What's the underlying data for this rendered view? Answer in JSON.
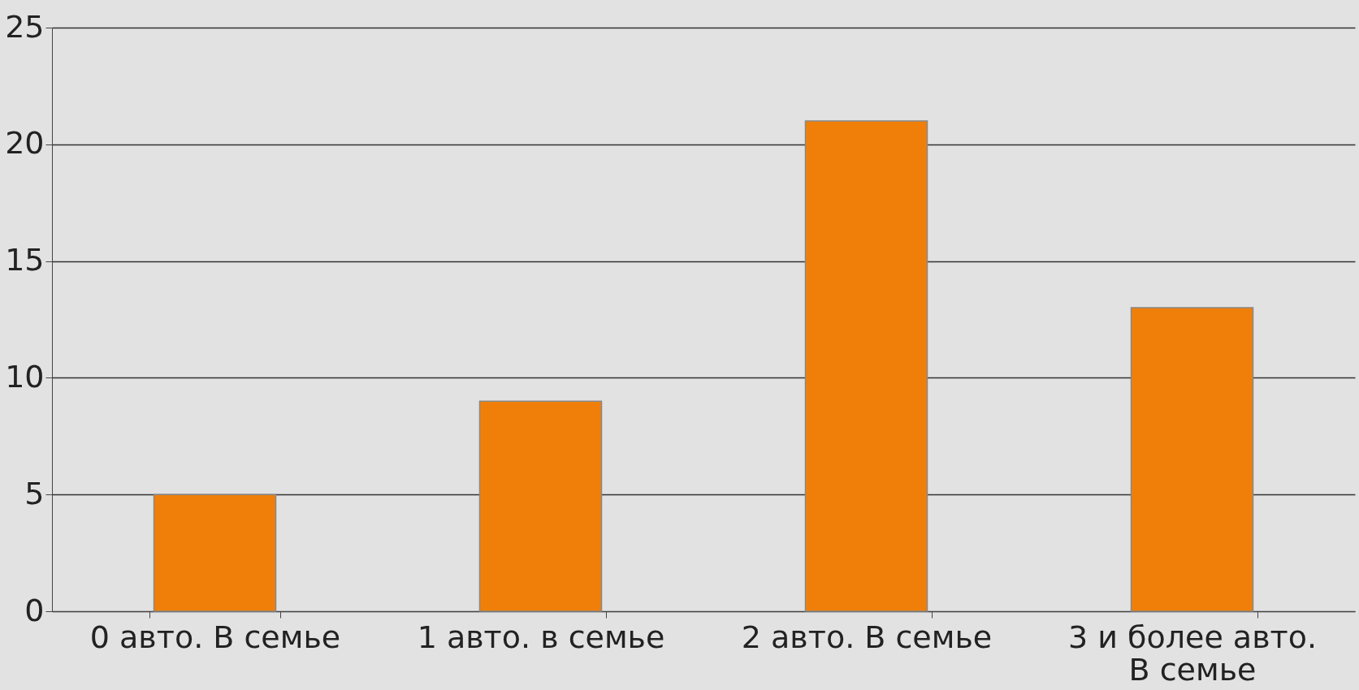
{
  "chart_data": {
    "type": "bar",
    "categories": [
      "0 авто. В семье",
      "1 авто. в семье",
      "2 авто. В семье",
      "3 и более авто. В семье"
    ],
    "values": [
      5,
      9,
      21,
      13
    ],
    "color": "#f07f09",
    "ylim": [
      0,
      25
    ],
    "yticks": [
      0,
      5,
      10,
      15,
      20,
      25
    ],
    "grid": "y"
  }
}
